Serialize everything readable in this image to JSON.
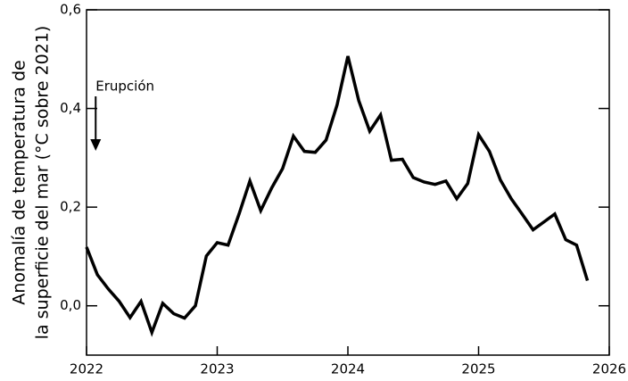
{
  "chart_data": {
    "type": "line",
    "ylabel": [
      "Anomalía de temperatura de",
      "la superficie del mar (°C sobre 2021)"
    ],
    "annotation": {
      "text": "Erupción",
      "x": 2022.07
    },
    "x": [
      2022.0,
      2022.083,
      2022.167,
      2022.25,
      2022.333,
      2022.417,
      2022.5,
      2022.583,
      2022.667,
      2022.75,
      2022.833,
      2022.917,
      2023.0,
      2023.083,
      2023.167,
      2023.25,
      2023.333,
      2023.417,
      2023.5,
      2023.583,
      2023.667,
      2023.75,
      2023.833,
      2023.917,
      2024.0,
      2024.083,
      2024.167,
      2024.25,
      2024.333,
      2024.417,
      2024.5,
      2024.583,
      2024.667,
      2024.75,
      2024.833,
      2024.917,
      2025.0,
      2025.083,
      2025.167,
      2025.25,
      2025.333,
      2025.417,
      2025.5,
      2025.583,
      2025.667,
      2025.75,
      2025.833
    ],
    "series": [
      {
        "color": "#000000",
        "values": [
          0.119,
          0.063,
          0.034,
          0.009,
          -0.024,
          0.009,
          -0.054,
          0.005,
          -0.016,
          -0.025,
          0.0,
          0.101,
          0.128,
          0.123,
          0.186,
          0.253,
          0.193,
          0.239,
          0.278,
          0.344,
          0.313,
          0.311,
          0.336,
          0.407,
          0.506,
          0.416,
          0.354,
          0.387,
          0.295,
          0.297,
          0.26,
          0.251,
          0.246,
          0.253,
          0.217,
          0.248,
          0.347,
          0.313,
          0.255,
          0.217,
          0.186,
          0.154,
          0.17,
          0.186,
          0.134,
          0.123,
          0.051
        ]
      }
    ],
    "xlim": [
      2022,
      2026
    ],
    "xticks": [
      2022,
      2023,
      2024,
      2025,
      2026
    ],
    "ylim": [
      -0.1,
      0.6
    ],
    "yticks": [
      {
        "value": 0.0,
        "label": "0,0"
      },
      {
        "value": 0.2,
        "label": "0,2"
      },
      {
        "value": 0.4,
        "label": "0,4"
      },
      {
        "value": 0.6,
        "label": "0,6"
      }
    ]
  }
}
